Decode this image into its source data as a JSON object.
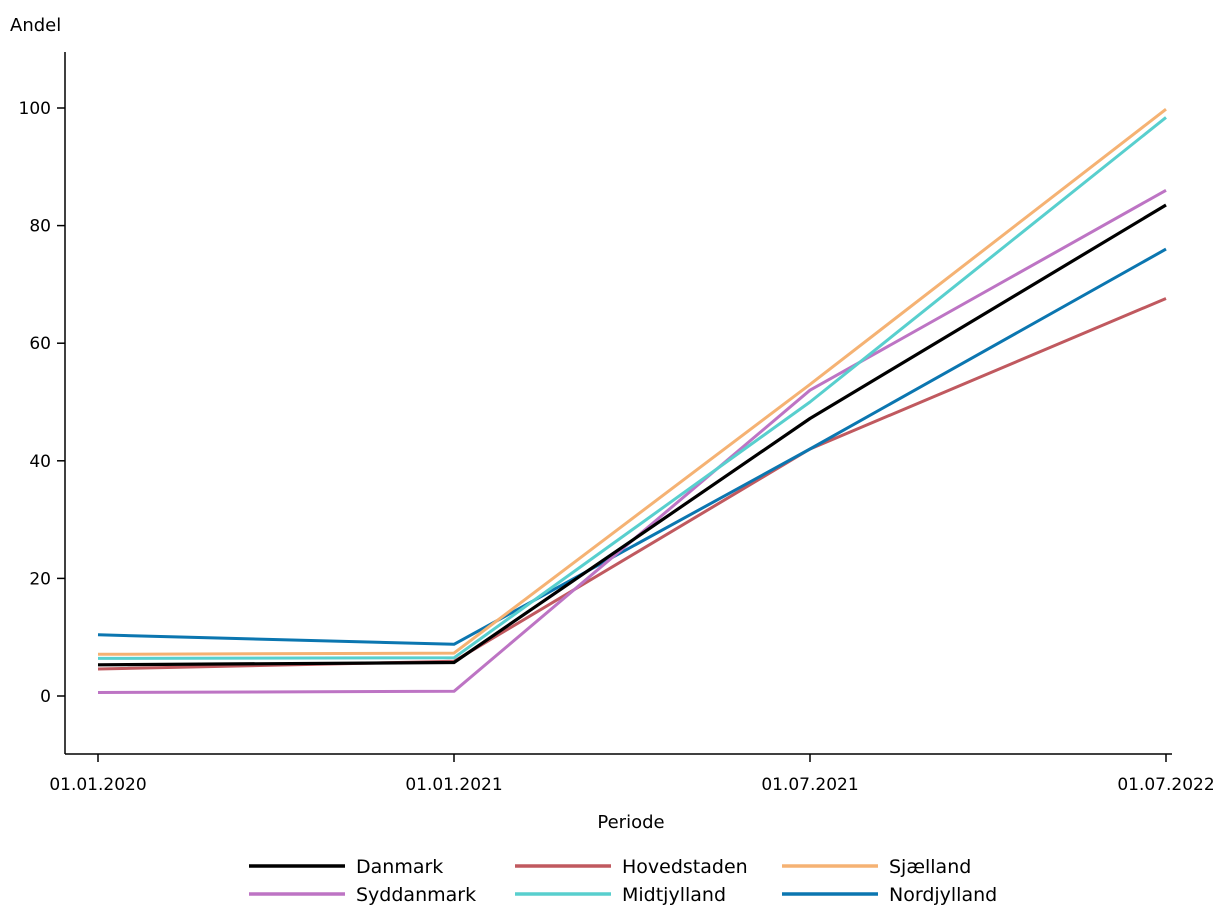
{
  "chart_data": {
    "type": "line",
    "xlabel": "Periode",
    "ylabel": "Andel",
    "categories": [
      "01.01.2020",
      "01.01.2021",
      "01.07.2021",
      "01.07.2022"
    ],
    "ylim": [
      -10,
      109
    ],
    "yticks": [
      0,
      20,
      40,
      60,
      80,
      100
    ],
    "grid": false,
    "legend_position": "bottom",
    "series": [
      {
        "name": "Danmark",
        "color": "#000000",
        "values": [
          5.3,
          5.7,
          47.2,
          83.5
        ]
      },
      {
        "name": "Hovedstaden",
        "color": "#c0595f",
        "values": [
          4.6,
          5.9,
          42.0,
          67.6
        ]
      },
      {
        "name": "Sjælland",
        "color": "#f5b273",
        "values": [
          7.1,
          7.3,
          53.0,
          99.8
        ]
      },
      {
        "name": "Syddanmark",
        "color": "#bd74c4",
        "values": [
          0.6,
          0.8,
          52.0,
          86.0
        ]
      },
      {
        "name": "Midtjylland",
        "color": "#58cfce",
        "values": [
          6.4,
          6.5,
          50.0,
          98.4
        ]
      },
      {
        "name": "Nordjylland",
        "color": "#0b76b0",
        "values": [
          10.4,
          8.8,
          42.0,
          76.0
        ]
      }
    ]
  }
}
